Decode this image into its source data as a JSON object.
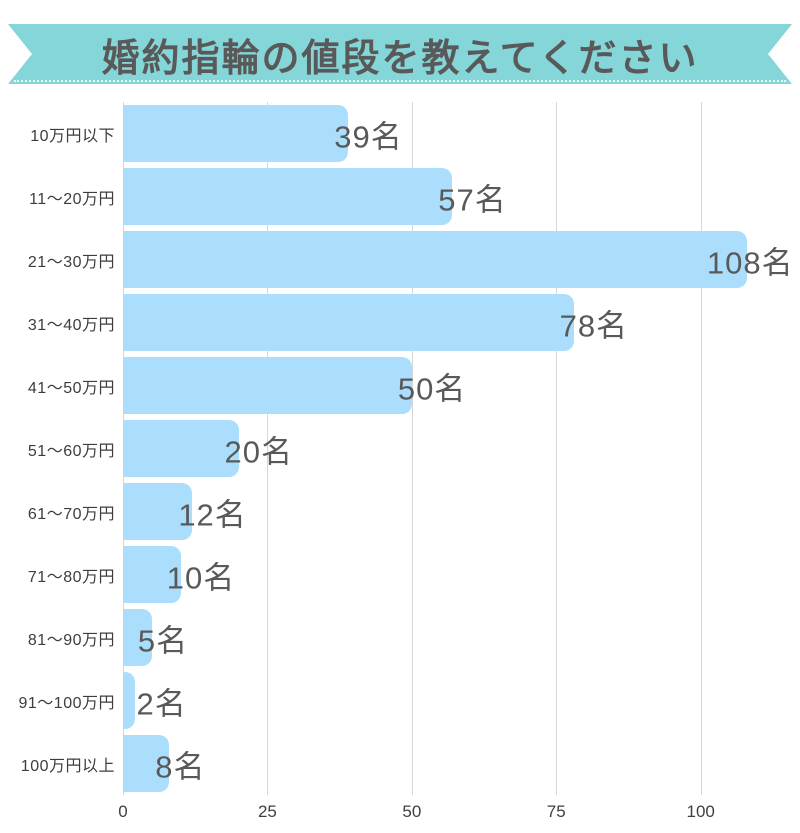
{
  "banner": {
    "title": "婚約指輪の値段を教えてください"
  },
  "chart_data": {
    "type": "bar",
    "orientation": "horizontal",
    "title": "婚約指輪の値段を教えてください",
    "categories": [
      "10万円以下",
      "11〜20万円",
      "21〜30万円",
      "31〜40万円",
      "41〜50万円",
      "51〜60万円",
      "61〜70万円",
      "71〜80万円",
      "81〜90万円",
      "91〜100万円",
      "100万円以上"
    ],
    "values": [
      39,
      57,
      108,
      78,
      50,
      20,
      12,
      10,
      5,
      2,
      8
    ],
    "value_labels": [
      "39名",
      "57名",
      "108名",
      "78名",
      "50名",
      "20名",
      "12名",
      "10名",
      "5名",
      "2名",
      "8名"
    ],
    "unit_suffix": "名",
    "xlabel": "",
    "ylabel": "",
    "x_ticks": [
      0,
      25,
      50,
      75,
      100
    ],
    "xlim": [
      0,
      112
    ],
    "grid": true,
    "gridline_orientation": "vertical",
    "legend": false
  },
  "colors": {
    "ribbon": "#85d6d8",
    "bar": "#abdefc",
    "title": "#595959",
    "category_label": "#3d3d3d",
    "value_label": "#595959",
    "axis_label": "#3f3f3f",
    "gridline": "#d6d6d6",
    "background": "#ffffff"
  }
}
